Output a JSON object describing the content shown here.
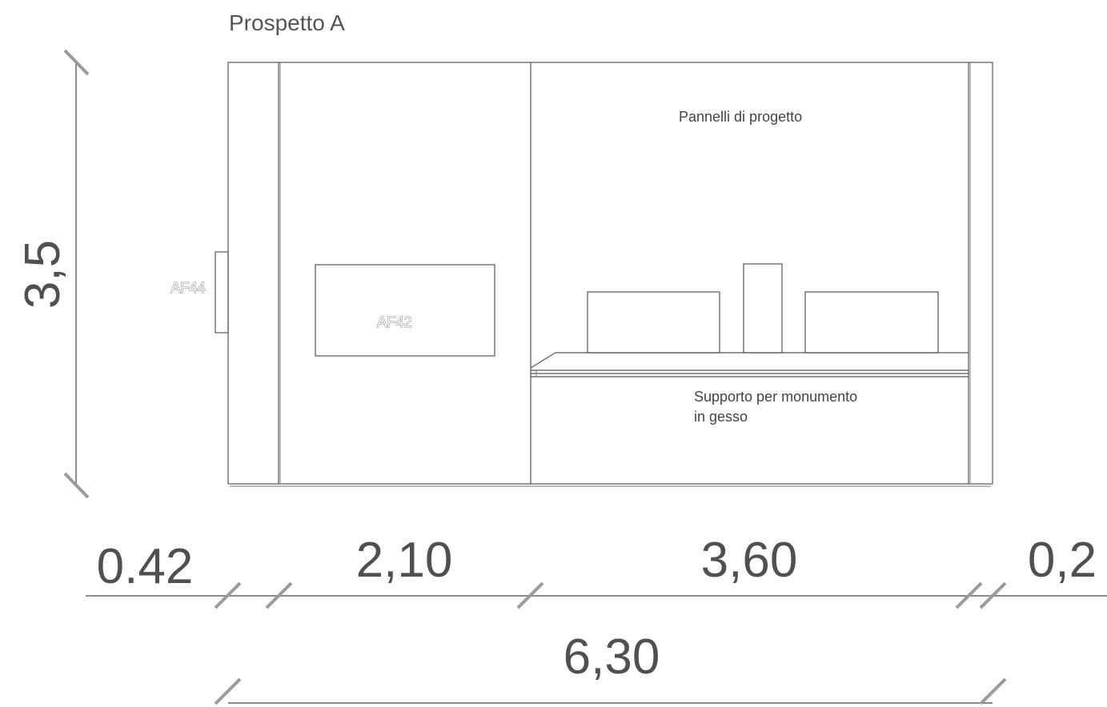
{
  "drawing": {
    "title": "Prospetto A",
    "labels": {
      "panels": "Pannelli di progetto",
      "support_line1": "Supporto per monumento",
      "support_line2": "in gesso",
      "af44": "AF44",
      "af42": "AF42"
    },
    "dimensions": {
      "height": "3,5",
      "seg_left": "0.42",
      "seg_1": "2,10",
      "seg_2": "3,60",
      "seg_right": "0,2",
      "total": "6,30"
    }
  }
}
